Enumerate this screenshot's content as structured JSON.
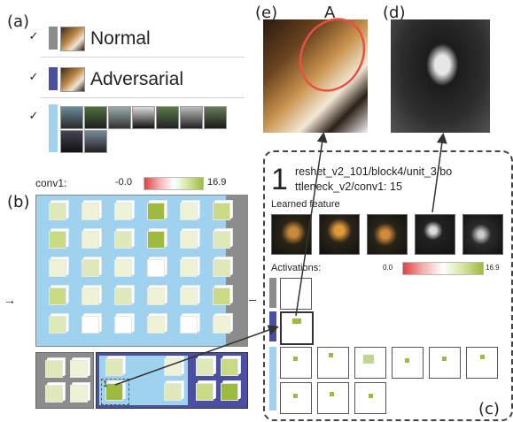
{
  "panels": {
    "a": "(a)",
    "b": "(b)",
    "c": "(c)",
    "d": "(d)",
    "e": "(e)",
    "A": "A"
  },
  "legend_a": {
    "rows": [
      {
        "label": "Normal",
        "checked": "✓",
        "swatch_color": "#8c8c8c"
      },
      {
        "label": "Adversarial",
        "checked": "✓",
        "swatch_color": "#4b4fa2"
      },
      {
        "label": "",
        "checked": "✓",
        "swatch_color": "#9fd2ef"
      }
    ]
  },
  "conv_panel": {
    "title": "conv1:",
    "scale_min": "-0.0",
    "scale_max": "16.9",
    "selected_index": "1",
    "colors": {
      "grid_bg": "#9fd2ef",
      "normal": "#8c8c8c",
      "adversarial": "#4b4fa2",
      "high": "#9dbb3e",
      "low": "#e04040"
    }
  },
  "detail_panel": {
    "index": "1",
    "layer_line1": "reshet_v2_101/block4/unit_3/bo",
    "layer_line2": "ttleneck_v2/conv1: 15",
    "learned_feature_label": "Learned feature",
    "activations_label": "Activations:",
    "act_min": "0.0",
    "act_max": "16.9"
  }
}
